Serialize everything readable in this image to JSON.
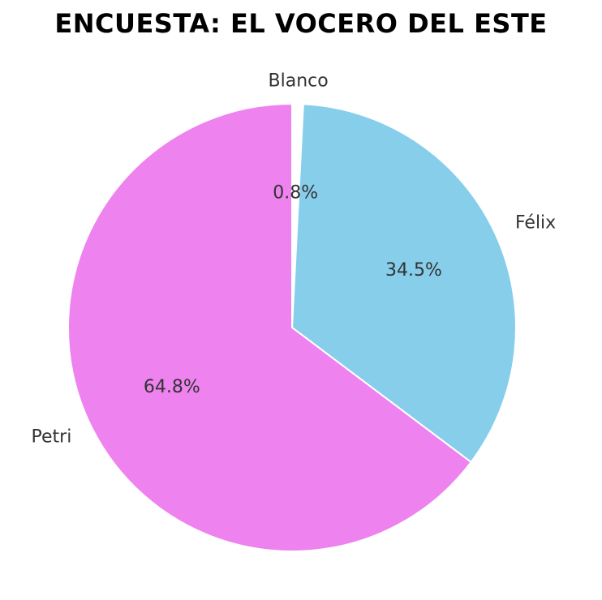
{
  "chart_data": {
    "type": "pie",
    "title": "ENCUESTA: EL VOCERO DEL ESTE",
    "slices": [
      {
        "label": "Blanco",
        "value": 0.8,
        "pct_label": "0.8%",
        "color": "#ffffff"
      },
      {
        "label": "Félix",
        "value": 34.5,
        "pct_label": "34.5%",
        "color": "#87ceeb"
      },
      {
        "label": "Petri",
        "value": 64.8,
        "pct_label": "64.8%",
        "color": "#ee82ee"
      }
    ],
    "start_angle_deg": 90,
    "direction": "clockwise"
  }
}
